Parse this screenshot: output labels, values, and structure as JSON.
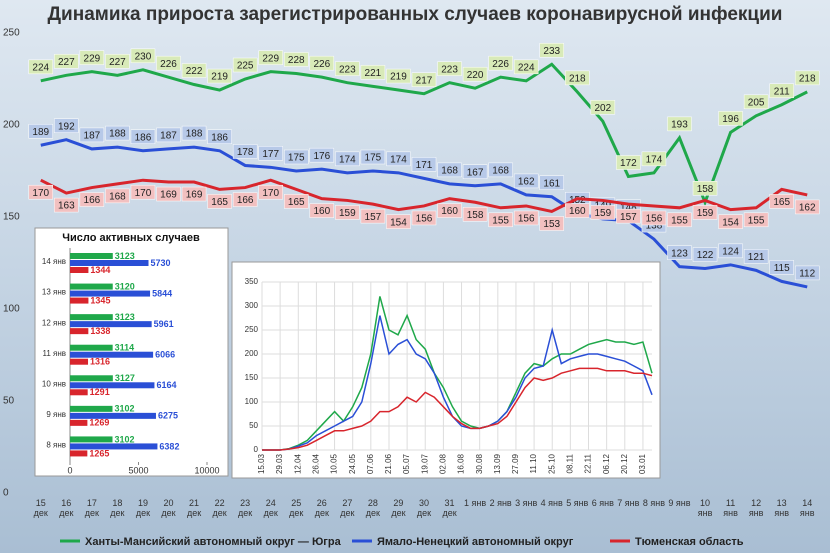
{
  "chart_data": [
    {
      "type": "line",
      "title": "Динамика прироста зарегистрированных случаев коронавирусной инфекции",
      "categories": [
        "15 дек",
        "16 дек",
        "17 дек",
        "18 дек",
        "19 дек",
        "20 дек",
        "21 дек",
        "22 дек",
        "23 дек",
        "24 дек",
        "25 дек",
        "26 дек",
        "27 дек",
        "28 дек",
        "29 дек",
        "30 дек",
        "31 дек",
        "1 янв",
        "2 янв",
        "3 янв",
        "4 янв",
        "5 янв",
        "6 янв",
        "7 янв",
        "8 янв",
        "9 янв",
        "10 янв",
        "11 янв",
        "12 янв",
        "13 янв",
        "14 янв"
      ],
      "series": [
        {
          "name": "Ханты-Мансийский автономный округ — Югра",
          "color": "#1fa84a",
          "values": [
            224,
            227,
            229,
            227,
            230,
            226,
            222,
            219,
            225,
            229,
            228,
            226,
            223,
            221,
            219,
            217,
            223,
            220,
            226,
            224,
            233,
            218,
            202,
            172,
            174,
            193,
            158,
            196,
            205,
            211,
            218
          ]
        },
        {
          "name": "Ямало-Ненецкий автономный округ",
          "color": "#2a4fd6",
          "values": [
            189,
            192,
            187,
            188,
            186,
            187,
            188,
            186,
            178,
            177,
            175,
            176,
            174,
            175,
            174,
            171,
            168,
            167,
            168,
            162,
            161,
            152,
            149,
            148,
            138,
            123,
            122,
            124,
            121,
            115,
            112
          ]
        },
        {
          "name": "Тюменская область",
          "color": "#d8252c",
          "values": [
            170,
            163,
            166,
            168,
            170,
            169,
            169,
            165,
            166,
            170,
            165,
            160,
            159,
            157,
            154,
            156,
            160,
            158,
            155,
            156,
            153,
            160,
            159,
            157,
            156,
            155,
            159,
            154,
            155,
            165,
            162
          ]
        }
      ],
      "ylim": [
        0,
        250
      ],
      "yticks": [
        0,
        50,
        100,
        150,
        200,
        250
      ],
      "data_labels": true,
      "grid": false
    },
    {
      "type": "bar",
      "orientation": "horizontal",
      "title": "Число активных случаев",
      "categories": [
        "14 янв",
        "13 янв",
        "12 янв",
        "11 янв",
        "10 янв",
        "9 янв",
        "8 янв"
      ],
      "series": [
        {
          "color": "#1fa84a",
          "values": [
            3123,
            3120,
            3123,
            3114,
            3127,
            3102,
            3102
          ]
        },
        {
          "color": "#2a4fd6",
          "values": [
            5730,
            5844,
            5961,
            6066,
            6164,
            6275,
            6382
          ]
        },
        {
          "color": "#d8252c",
          "values": [
            1344,
            1345,
            1338,
            1316,
            1291,
            1269,
            1265
          ]
        }
      ],
      "xlim": [
        0,
        10000
      ],
      "xticks": [
        0,
        5000,
        10000
      ],
      "data_labels": true
    },
    {
      "type": "line",
      "categories": [
        "15.03",
        null,
        "29.03",
        null,
        "12.04",
        null,
        "26.04",
        null,
        "10.05",
        null,
        "24.05",
        null,
        "07.06",
        null,
        "21.06",
        null,
        "05.07",
        null,
        "19.07",
        null,
        "02.08",
        null,
        "16.08",
        null,
        "30.08",
        null,
        "13.09",
        null,
        "27.09",
        null,
        "11.10",
        null,
        "25.10",
        null,
        "08.11",
        null,
        "22.11",
        null,
        "06.12",
        null,
        "20.12",
        null,
        "03.01",
        null
      ],
      "series": [
        {
          "color": "#1fa84a",
          "values": [
            0,
            0,
            0,
            3,
            10,
            20,
            40,
            60,
            80,
            60,
            90,
            130,
            200,
            320,
            250,
            240,
            280,
            230,
            210,
            160,
            130,
            90,
            60,
            50,
            45,
            50,
            60,
            80,
            120,
            160,
            180,
            175,
            190,
            200,
            200,
            210,
            220,
            225,
            230,
            225,
            225,
            220,
            225,
            160
          ]
        },
        {
          "color": "#2a4fd6",
          "values": [
            0,
            0,
            0,
            2,
            8,
            15,
            30,
            40,
            50,
            60,
            70,
            100,
            180,
            280,
            200,
            220,
            230,
            200,
            190,
            160,
            110,
            70,
            50,
            45,
            45,
            50,
            60,
            80,
            110,
            150,
            170,
            175,
            250,
            180,
            190,
            195,
            200,
            200,
            195,
            190,
            185,
            175,
            165,
            115
          ]
        },
        {
          "color": "#d8252c",
          "values": [
            0,
            0,
            0,
            2,
            5,
            10,
            20,
            30,
            40,
            40,
            45,
            50,
            60,
            80,
            80,
            90,
            110,
            100,
            120,
            110,
            90,
            70,
            55,
            45,
            45,
            50,
            55,
            70,
            100,
            130,
            150,
            145,
            150,
            160,
            165,
            170,
            170,
            170,
            165,
            165,
            165,
            160,
            160,
            155
          ]
        }
      ],
      "ylim": [
        0,
        350
      ],
      "yticks": [
        0,
        50,
        100,
        150,
        200,
        250,
        300,
        350
      ],
      "grid": true,
      "data_labels": false
    }
  ]
}
